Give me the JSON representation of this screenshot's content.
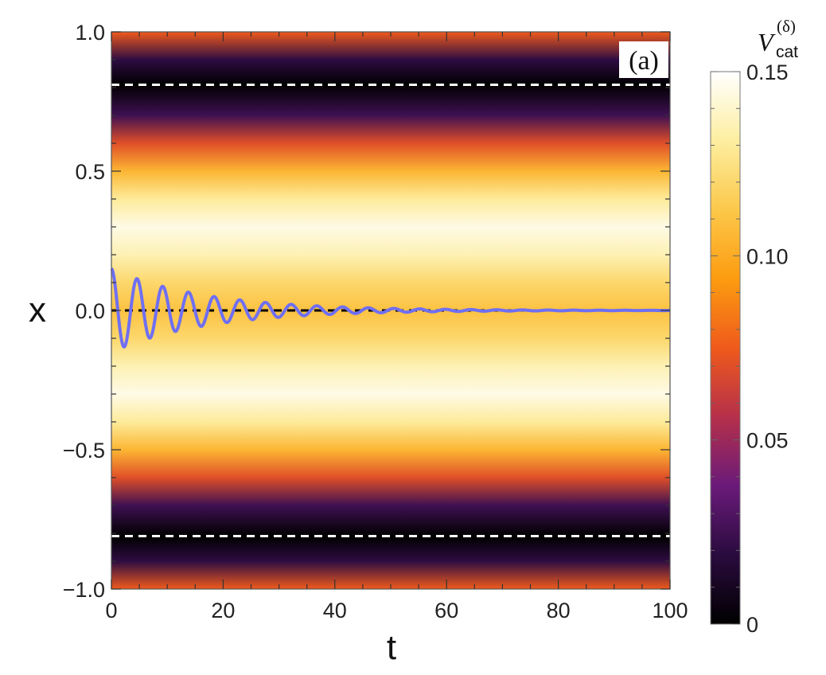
{
  "chart_data": {
    "type": "heatmap",
    "panel_label": "(a)",
    "xlabel": "t",
    "ylabel": "x",
    "xlim": [
      0,
      100
    ],
    "ylim": [
      -1.0,
      1.0
    ],
    "x_ticks": [
      "0",
      "20",
      "40",
      "60",
      "80",
      "100"
    ],
    "x_tick_values": [
      0,
      20,
      40,
      60,
      80,
      100
    ],
    "y_ticks": [
      "−1.0",
      "−0.5",
      "0.0",
      "0.5",
      "1.0"
    ],
    "y_tick_values": [
      -1.0,
      -0.5,
      0.0,
      0.5,
      1.0
    ],
    "heatmap_profile": {
      "description_units": "V_cat vs x (independent of t)",
      "x_points": [
        -1.0,
        -0.9,
        -0.81,
        -0.7,
        -0.6,
        -0.5,
        -0.4,
        -0.3,
        -0.2,
        -0.1,
        0.0,
        0.1,
        0.2,
        0.3,
        0.4,
        0.5,
        0.6,
        0.7,
        0.81,
        0.9,
        1.0
      ],
      "values": [
        0.075,
        0.02,
        0.0,
        0.025,
        0.07,
        0.105,
        0.13,
        0.145,
        0.135,
        0.12,
        0.11,
        0.12,
        0.135,
        0.145,
        0.13,
        0.105,
        0.07,
        0.025,
        0.0,
        0.02,
        0.075
      ]
    },
    "series": [
      {
        "name": "trajectory x(t)",
        "color": "#6f6ff2",
        "model": "damped_oscillation",
        "amplitude": 0.15,
        "decay_rate": 0.06,
        "period": 4.6,
        "t_range": [
          0,
          100
        ]
      }
    ],
    "reference_lines": [
      {
        "name": "upper-white-dashed-line",
        "y": 0.81,
        "color": "#ffffff",
        "style": "dashed"
      },
      {
        "name": "lower-white-dashed-line",
        "y": -0.81,
        "color": "#ffffff",
        "style": "dashed"
      },
      {
        "name": "zero-black-dashed-line",
        "y": 0.0,
        "color": "#000000",
        "style": "dashed"
      }
    ],
    "colorbar": {
      "title": "V",
      "title_superscript": "(δ)",
      "title_subscript": "cat",
      "range": [
        0,
        0.15
      ],
      "tick_labels": [
        "0",
        "0.05",
        "0.10",
        "0.15"
      ],
      "tick_values": [
        0,
        0.05,
        0.1,
        0.15
      ],
      "colors": [
        "#000000",
        "#2a0b3e",
        "#6a1a7a",
        "#b5304a",
        "#ef5a1c",
        "#fc9c10",
        "#fcc84a",
        "#fdeea0",
        "#ffffff"
      ]
    }
  }
}
